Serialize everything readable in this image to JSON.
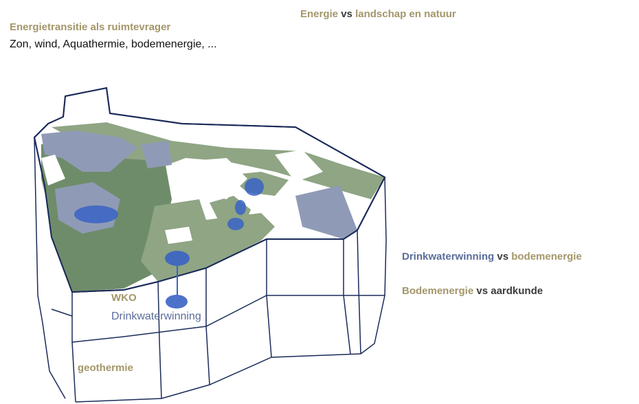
{
  "titles": {
    "right_part1": "Energie",
    "right_vs": " vs ",
    "right_part2": "landschap en natuur",
    "left_heading": "Energietransitie als ruimtevrager",
    "left_subheading": "Zon, wind, Aquathermie, bodemenergie, ..."
  },
  "labels": {
    "dw_part1": "Drinkwaterwinning",
    "dw_vs": " vs ",
    "dw_part2": "bodemenergie",
    "be_part1": "Bodemenergie",
    "be_vs": " vs ",
    "be_part2": "aardkunde",
    "wko": "WKO",
    "drinkwaterwinning": "Drinkwaterwinning",
    "geothermie": "geothermie"
  },
  "colors": {
    "tan": "#a39669",
    "blue_text": "#5b6c9a",
    "green_area": "#8fa584",
    "dark_green_area": "#6f8c6a",
    "grey_blue_area": "#8f9bb6",
    "ellipse_blue": "#3a63c4",
    "outline": "#1a2a5a"
  }
}
